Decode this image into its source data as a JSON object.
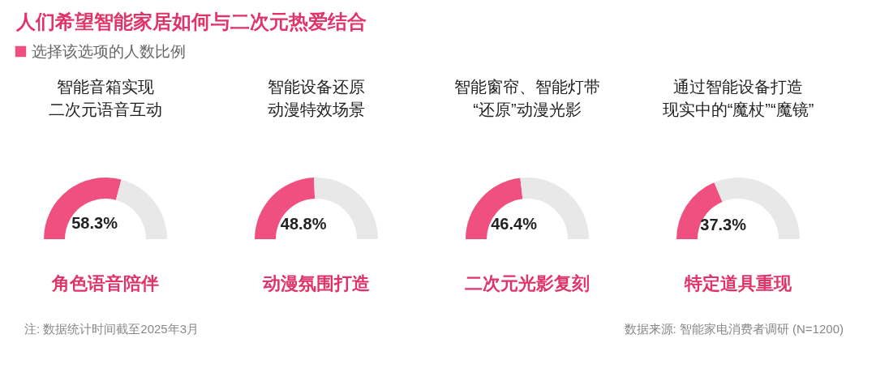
{
  "chart_data": [
    {
      "type": "other",
      "title": "人们希望智能家居如何与二次元热爱结合",
      "annotations": [
        "注: 数据统计时间截至2025年3月",
        "数据来源: 智能家电消费者调研 (N=1200)"
      ]
    },
    {
      "type": "donut",
      "title": "角色语音陪伴",
      "categories": [
        "选择该选项的人数比例",
        null
      ],
      "legend": "top left",
      "values": [
        58.3,
        41.7
      ],
      "colors": [
        "#f0507f",
        "#e8e8e8"
      ],
      "value_labels": [
        "58.3%",
        null
      ],
      "annotations": [
        "智能音箱实现",
        "二次元语音互动"
      ]
    },
    {
      "type": "donut",
      "title": "动漫氛围打造",
      "categories": [
        null,
        null
      ],
      "values": [
        48.8,
        51.2
      ],
      "colors": [
        "#f0507f",
        "#e8e8e8"
      ],
      "value_labels": [
        "48.8%",
        null
      ],
      "annotations": [
        "智能设备还原",
        "动漫特效场景"
      ]
    },
    {
      "type": "donut",
      "title": "二次元光影复刻",
      "categories": [
        null,
        null
      ],
      "values": [
        46.4,
        53.6
      ],
      "colors": [
        "#f0507f",
        "#e8e8e8"
      ],
      "value_labels": [
        "46.4%",
        null
      ],
      "annotations": [
        "智能窗帘、智能灯带",
        "“还原”动漫光影"
      ]
    },
    {
      "type": "donut",
      "title": "特定道具重现",
      "categories": [
        null,
        null
      ],
      "values": [
        37.3,
        62.7
      ],
      "colors": [
        "#f0507f",
        "#e8e8e8"
      ],
      "value_labels": [
        "37.3%",
        null
      ],
      "annotations": [
        "通过智能设备打造",
        "现实中的“魔杖”“魔镜”"
      ]
    }
  ]
}
